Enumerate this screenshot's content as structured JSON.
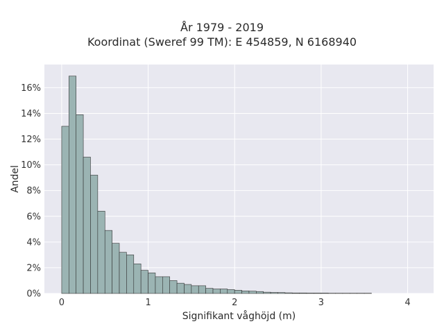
{
  "chart_data": {
    "type": "bar",
    "title": "År 1979 - 2019",
    "subtitle": "Koordinat (Sweref 99 TM): E 454859, N 6168940",
    "xlabel": "Signifikant våghöjd (m)",
    "ylabel": "Andel",
    "xlim": [
      -0.2,
      4.3
    ],
    "ylim": [
      0,
      17.8
    ],
    "x_ticks": [
      "0",
      "1",
      "2",
      "3",
      "4"
    ],
    "y_ticks": [
      "0%",
      "2%",
      "4%",
      "6%",
      "8%",
      "10%",
      "12%",
      "14%",
      "16%"
    ],
    "bin_width": 0.0833,
    "bin_start": 0,
    "values": [
      13.0,
      16.9,
      13.9,
      10.6,
      9.2,
      6.4,
      4.9,
      3.9,
      3.2,
      3.0,
      2.3,
      1.8,
      1.6,
      1.3,
      1.3,
      1.0,
      0.8,
      0.7,
      0.6,
      0.6,
      0.4,
      0.35,
      0.35,
      0.3,
      0.25,
      0.2,
      0.18,
      0.15,
      0.1,
      0.08,
      0.07,
      0.05,
      0.04,
      0.04,
      0.03,
      0.03,
      0.03,
      0.02,
      0.02,
      0.02,
      0.02,
      0.02,
      0.02
    ],
    "grid": true,
    "colors": {
      "bar_fill": "#9bb4b3",
      "bar_stroke": "#333333",
      "plot_background": "#e8e8f0",
      "grid": "#ffffff"
    }
  }
}
